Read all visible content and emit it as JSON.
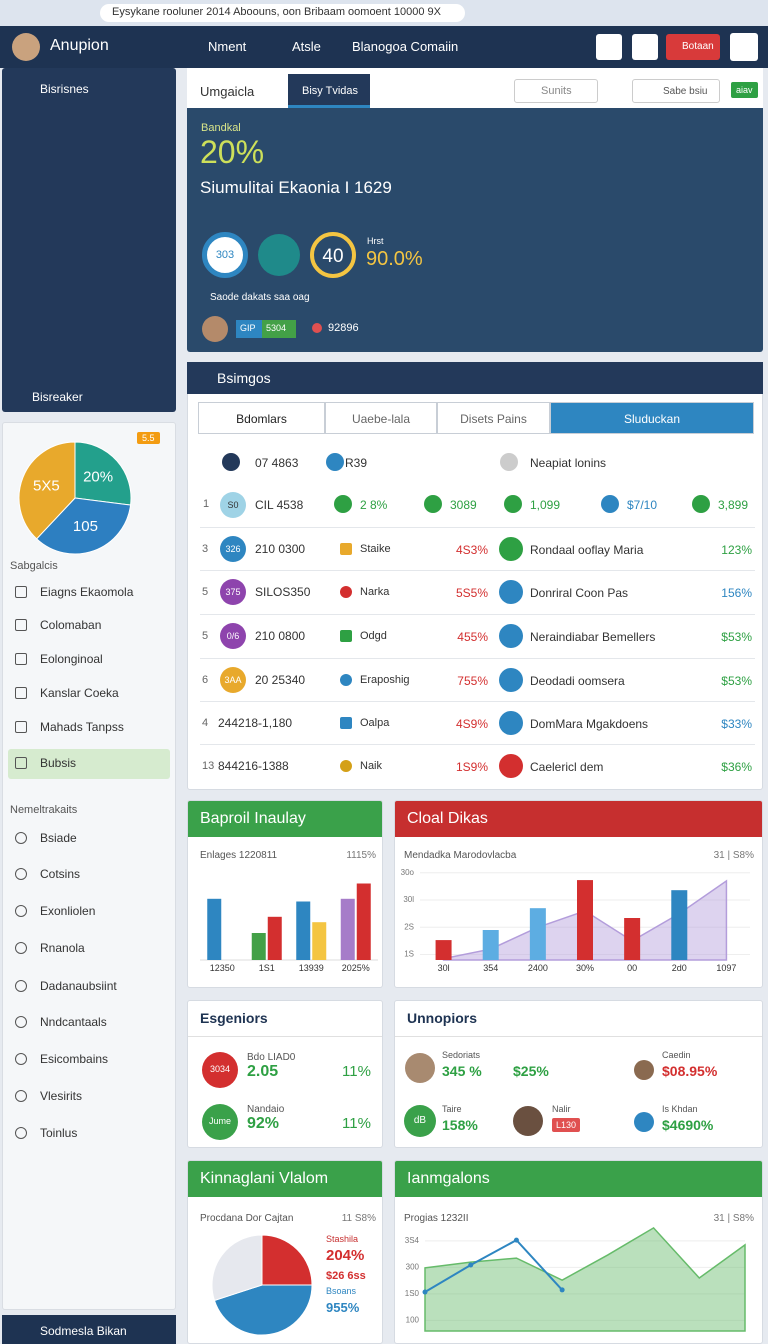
{
  "browser": {
    "url": "Eysykane rooluner 2014 Aboouns, oon Bribaam oomoent 10000 9X"
  },
  "header": {
    "brand": "Anupion",
    "nav": [
      "Nment",
      "Atsle",
      "Blanogoa Comaiin"
    ],
    "button": "Botaan"
  },
  "sidebar": {
    "panel_title": "Bisrisnes",
    "panel_footer": "Bisreaker",
    "badge": "5.5",
    "section1": "Sabgalcis",
    "menu1": [
      "Eiagns Ekaomola",
      "Colomaban",
      "Eolonginoal",
      "Kanslar Coeka",
      "Mahads Tanpss",
      "Bubsis"
    ],
    "section2": "Nemeltrakaits",
    "menu2": [
      "Bsiade",
      "Cotsins",
      "Exonliolen",
      "Rnanola",
      "Dadanaubsiint",
      "Nndcantaals",
      "Esicombains",
      "Vlesirits",
      "Toinlus"
    ],
    "footer": "Sodmesla Bikan"
  },
  "map": {
    "tabs": [
      "Umgaicla",
      "Bisy Tvidas"
    ],
    "search": "Sunits",
    "user": "Sabe bsiu",
    "badge": "aiav",
    "kicker": "Bandkal",
    "big": "20%",
    "subtitle": "Siumulitai Ekaonia I 1629",
    "circles": [
      "303",
      "40"
    ],
    "stat_label": "Hrst",
    "stat": "90.0%",
    "note": "Saode dakats saa oag",
    "chips": [
      "GIP",
      "5304"
    ],
    "extra": "92896"
  },
  "table": {
    "title": "Bsimgos",
    "tabs": [
      "Bdomlars",
      "Uaebe-lala",
      "Disets Pains",
      "Sluduckan"
    ],
    "header": [
      "07 4863",
      "R39",
      "Neapiat lonins"
    ],
    "first_row": {
      "num": "1",
      "badge": "S0",
      "code": "CIL 4538",
      "cells": [
        "2 8%",
        "3089",
        "1,099",
        "$7/10",
        "3,899"
      ]
    },
    "rows": [
      {
        "num": "3",
        "badge": "326",
        "code": "210 0300",
        "label": "Staike",
        "pct": "4S3%",
        "name": "Rondaal ooflay Maria",
        "pct2": "123%"
      },
      {
        "num": "5",
        "badge": "375",
        "code": "SILOS350",
        "label": "Narka",
        "pct": "5S5%",
        "name": "Donriral Coon Pas",
        "pct2": "156%"
      },
      {
        "num": "5",
        "badge": "0/6",
        "code": "210 0800",
        "label": "Odgd",
        "pct": "455%",
        "name": "Neraindiabar Bemellers",
        "pct2": "$53%"
      },
      {
        "num": "6",
        "badge": "3AA",
        "code": "20 25340",
        "label": "Eraposhig",
        "pct": "755%",
        "name": "Deodadi oomsera",
        "pct2": "$53%"
      },
      {
        "num": "4",
        "code": "244218-1,180",
        "label": "Oalpa",
        "pct": "4S9%",
        "name": "DomMara Mgakdoens",
        "pct2": "$33%"
      },
      {
        "num": "13",
        "code": "844216-1388",
        "label": "Naik",
        "pct": "1S9%",
        "name": "Caelericl dem",
        "pct2": "$36%"
      }
    ]
  },
  "cards": {
    "esg": {
      "title": "Esgeniors",
      "rows": [
        {
          "circle": "3034",
          "small": "Bdo LIAD0",
          "big": "2.05",
          "pct": "11%"
        },
        {
          "circle": "Jume",
          "small": "Nandaio",
          "big": "92%",
          "pct": "11%"
        }
      ]
    },
    "unn": {
      "title": "Unnopiors",
      "a1": "Sedoriats",
      "a2": "345 %",
      "a3": "$25%",
      "a4": "Caedin",
      "a5": "$08.95%",
      "b0": "dB",
      "b1": "Taire",
      "b2": "158%",
      "b3": "Nalir",
      "b4": "L130",
      "b5": "Is Khdan",
      "b6": "$4690%"
    }
  },
  "chart_data": [
    {
      "type": "bar",
      "title": "Baproil Inaulay",
      "subtitle": "Enlages 1220811",
      "note": "1115%",
      "categories": [
        "12350",
        "1S1",
        "13939",
        "2025%"
      ],
      "ylim": [
        0,
        100
      ],
      "series": [
        {
          "colors": [
            "#2e86c1",
            "#43a047",
            "#2e86c1",
            "#a67cc9"
          ],
          "values": [
            68,
            30,
            65,
            68
          ]
        },
        {
          "colors": [
            "#d32f2f",
            "#d32f2f",
            "#f4c542",
            "#d32f2f"
          ],
          "values": [
            null,
            48,
            42,
            85
          ]
        }
      ]
    },
    {
      "type": "combo",
      "title": "Cloal Dikas",
      "subtitle": "Mendadka Marodovlacba",
      "note": "31 | S8%",
      "categories": [
        "30l",
        "354",
        "2400",
        "30%",
        "00",
        "2d0",
        "1097"
      ],
      "ylim": [
        80,
        410
      ],
      "yticks": [
        {
          "value": 100,
          "label": "1S"
        },
        {
          "value": 200,
          "label": "2S"
        },
        {
          "value": 300,
          "label": "30l"
        },
        {
          "value": 400,
          "label": "30o"
        }
      ],
      "series": [
        {
          "kind": "bar",
          "colors": [
            "#d32f2f",
            "#5dade2",
            "#5dade2",
            "#d32f2f",
            "#d32f2f",
            "#2e86c1",
            null
          ],
          "values": [
            153,
            190,
            270,
            373,
            234,
            336,
            null
          ]
        },
        {
          "kind": "area",
          "color": "#b39ddb",
          "values": [
            85,
            120,
            200,
            260,
            150,
            250,
            370
          ]
        }
      ]
    },
    {
      "type": "pie",
      "title": "Kinnaglani Vlalom",
      "subtitle": "Procdana Dor Cajtan",
      "note": "11 S8%",
      "values": [
        25,
        45,
        30
      ],
      "colors": [
        "#d32f2f",
        "#2e86c1",
        "#e6e8ee"
      ],
      "texts": [
        "Stashila",
        "204%",
        "$26 6ss",
        "Bsoans",
        "955%"
      ]
    },
    {
      "type": "line",
      "title": "Ianmgalons",
      "subtitle": "Progias 1232II",
      "note": "31 | S8%",
      "categories": [
        null,
        null,
        null,
        null,
        null,
        null,
        null,
        null
      ],
      "ylim": [
        60,
        460
      ],
      "yticks": [
        {
          "value": 100,
          "label": "100"
        },
        {
          "value": 200,
          "label": "1S0"
        },
        {
          "value": 300,
          "label": "300"
        },
        {
          "value": 400,
          "label": "3S4"
        }
      ],
      "series": [
        {
          "kind": "area",
          "color": "#66bb6a",
          "values": [
            298,
            320,
            335,
            252,
            347,
            449,
            260,
            385
          ]
        },
        {
          "kind": "line",
          "color": "#2e86c1",
          "values": [
            207,
            309,
            403,
            215,
            null,
            null,
            null,
            null
          ]
        }
      ]
    },
    {
      "type": "pie",
      "values": [
        27,
        35,
        38
      ],
      "colors": [
        "#23a08c",
        "#2d7fc1",
        "#e8a92c"
      ],
      "labels": [
        "20%",
        "105",
        "5X5"
      ]
    }
  ]
}
